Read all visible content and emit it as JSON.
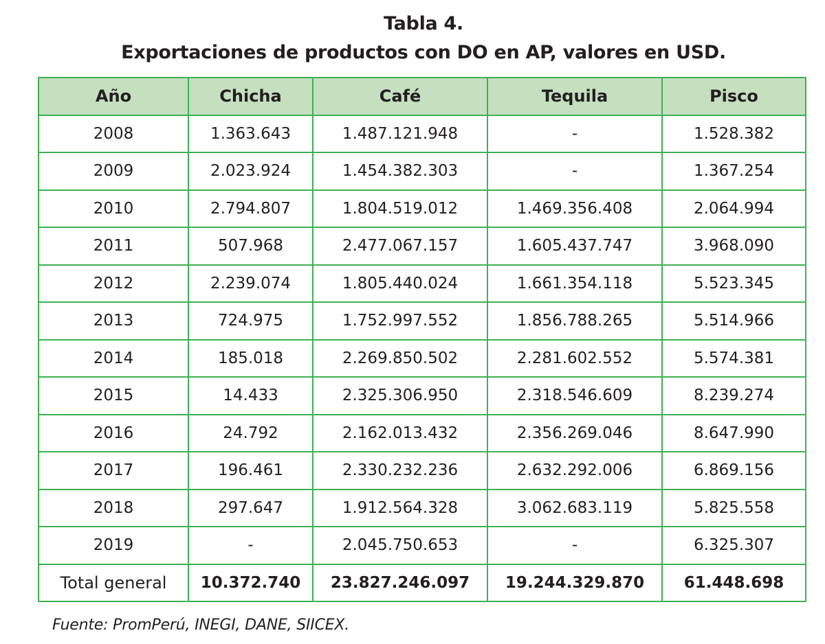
{
  "document": {
    "title_line1": "Tabla 4.",
    "title_line2": "Exportaciones de productos con DO en AP, valores en USD.",
    "source": "Fuente: PromPerú, INEGI, DANE, SIICEX."
  },
  "table": {
    "headers": [
      "Año",
      "Chicha",
      "Café",
      "Tequila",
      "Pisco"
    ],
    "rows": [
      [
        "2008",
        "1.363.643",
        "1.487.121.948",
        "-",
        "1.528.382"
      ],
      [
        "2009",
        "2.023.924",
        "1.454.382.303",
        "-",
        "1.367.254"
      ],
      [
        "2010",
        "2.794.807",
        "1.804.519.012",
        "1.469.356.408",
        "2.064.994"
      ],
      [
        "2011",
        "507.968",
        "2.477.067.157",
        "1.605.437.747",
        "3.968.090"
      ],
      [
        "2012",
        "2.239.074",
        "1.805.440.024",
        "1.661.354.118",
        "5.523.345"
      ],
      [
        "2013",
        "724.975",
        "1.752.997.552",
        "1.856.788.265",
        "5.514.966"
      ],
      [
        "2014",
        "185.018",
        "2.269.850.502",
        "2.281.602.552",
        "5.574.381"
      ],
      [
        "2015",
        "14.433",
        "2.325.306.950",
        "2.318.546.609",
        "8.239.274"
      ],
      [
        "2016",
        "24.792",
        "2.162.013.432",
        "2.356.269.046",
        "8.647.990"
      ],
      [
        "2017",
        "196.461",
        "2.330.232.236",
        "2.632.292.006",
        "6.869.156"
      ],
      [
        "2018",
        "297.647",
        "1.912.564.328",
        "3.062.683.119",
        "5.825.558"
      ],
      [
        "2019",
        "-",
        "2.045.750.653",
        "-",
        "6.325.307"
      ]
    ],
    "total": [
      "Total general",
      "10.372.740",
      "23.827.246.097",
      "19.244.329.870",
      "61.448.698"
    ]
  },
  "colors": {
    "border": "#3db152",
    "header_bg": "#c5dfbf",
    "text": "#231f20"
  }
}
